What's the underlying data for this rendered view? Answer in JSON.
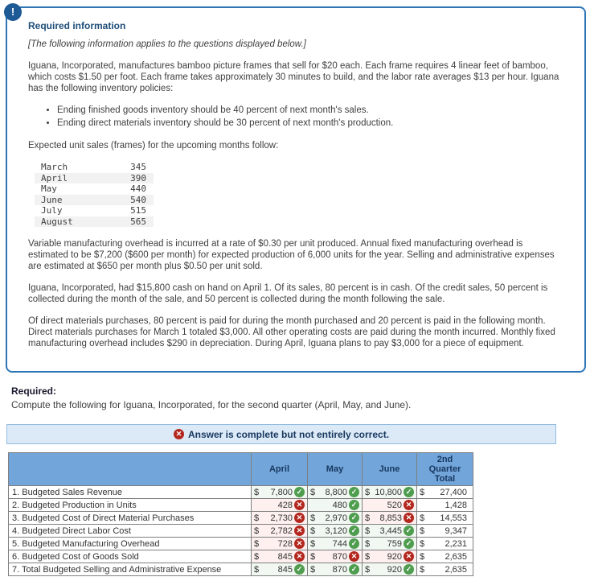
{
  "icons": {
    "alert": "!",
    "correct": "✓",
    "incorrect": "✕"
  },
  "colors": {
    "box_border": "#2e75b6",
    "heading_navy": "#1f4e79",
    "banner_bg": "#dceaf8",
    "header_blue": "#72a5da",
    "correct_green": "#4f9d4f",
    "incorrect_red": "#b3271e",
    "correct_cell_bg": "#f1f8f1",
    "incorrect_cell_bg": "#fdf0ef"
  },
  "info_box": {
    "heading": "Required information",
    "subheading": "[The following information applies to the questions displayed below.]",
    "paragraph1": "Iguana, Incorporated, manufactures bamboo picture frames that sell for $20 each. Each frame requires 4 linear feet of bamboo, which costs $1.50 per foot. Each frame takes approximately 30 minutes to build, and the labor rate averages $13 per hour. Iguana has the following inventory policies:",
    "bullets": [
      "Ending finished goods inventory should be 40 percent of next month's sales.",
      "Ending direct materials inventory should be 30 percent of next month's production."
    ],
    "sales_intro": "Expected unit sales (frames) for the upcoming months follow:",
    "unit_sales": [
      {
        "month": "March",
        "units": "345"
      },
      {
        "month": "April",
        "units": "390"
      },
      {
        "month": "May",
        "units": "440"
      },
      {
        "month": "June",
        "units": "540"
      },
      {
        "month": "July",
        "units": "515"
      },
      {
        "month": "August",
        "units": "565"
      }
    ],
    "paragraph2": "Variable manufacturing overhead is incurred at a rate of $0.30 per unit produced. Annual fixed manufacturing overhead is estimated to be $7,200 ($600 per month) for expected production of 6,000 units for the year. Selling and administrative expenses are estimated at $650 per month plus $0.50 per unit sold.",
    "paragraph3": "Iguana, Incorporated, had $15,800 cash on hand on April 1. Of its sales, 80 percent is in cash. Of the credit sales, 50 percent is collected during the month of the sale, and 50 percent is collected during the month following the sale.",
    "paragraph4": "Of direct materials purchases, 80 percent is paid for during the month purchased and 20 percent is paid in the following month. Direct materials purchases for March 1 totaled $3,000. All other operating costs are paid during the month incurred. Monthly fixed manufacturing overhead includes $290 in depreciation. During April, Iguana plans to pay $3,000 for a piece of equipment."
  },
  "required": {
    "label": "Required:",
    "instruction": "Compute the following for Iguana, Incorporated, for the second quarter (April, May, and June)."
  },
  "status_banner": {
    "text": "Answer is complete but not entirely correct."
  },
  "results_table": {
    "columns": [
      "",
      "April",
      "May",
      "June",
      "2nd\nQuarter\nTotal"
    ],
    "rows": [
      {
        "label": "1. Budgeted Sales Revenue",
        "cells": [
          {
            "currency": "$",
            "value": "7,800",
            "status": "correct"
          },
          {
            "currency": "$",
            "value": "8,800",
            "status": "correct"
          },
          {
            "currency": "$",
            "value": "10,800",
            "status": "correct"
          }
        ],
        "total": {
          "currency": "$",
          "value": "27,400"
        }
      },
      {
        "label": "2. Budgeted Production in Units",
        "cells": [
          {
            "currency": "",
            "value": "428",
            "status": "incorrect"
          },
          {
            "currency": "",
            "value": "480",
            "status": "correct"
          },
          {
            "currency": "",
            "value": "520",
            "status": "incorrect"
          }
        ],
        "total": {
          "currency": "",
          "value": "1,428"
        }
      },
      {
        "label": "3. Budgeted Cost of Direct Material Purchases",
        "cells": [
          {
            "currency": "$",
            "value": "2,730",
            "status": "incorrect"
          },
          {
            "currency": "$",
            "value": "2,970",
            "status": "correct"
          },
          {
            "currency": "$",
            "value": "8,853",
            "status": "incorrect"
          }
        ],
        "total": {
          "currency": "$",
          "value": "14,553"
        }
      },
      {
        "label": "4. Budgeted Direct Labor Cost",
        "cells": [
          {
            "currency": "$",
            "value": "2,782",
            "status": "incorrect"
          },
          {
            "currency": "$",
            "value": "3,120",
            "status": "correct"
          },
          {
            "currency": "$",
            "value": "3,445",
            "status": "correct"
          }
        ],
        "total": {
          "currency": "$",
          "value": "9,347"
        }
      },
      {
        "label": "5. Budgeted Manufacturing Overhead",
        "cells": [
          {
            "currency": "$",
            "value": "728",
            "status": "incorrect"
          },
          {
            "currency": "$",
            "value": "744",
            "status": "correct"
          },
          {
            "currency": "$",
            "value": "759",
            "status": "correct"
          }
        ],
        "total": {
          "currency": "$",
          "value": "2,231"
        }
      },
      {
        "label": "6. Budgeted Cost of Goods Sold",
        "cells": [
          {
            "currency": "$",
            "value": "845",
            "status": "incorrect"
          },
          {
            "currency": "$",
            "value": "870",
            "status": "incorrect"
          },
          {
            "currency": "$",
            "value": "920",
            "status": "incorrect"
          }
        ],
        "total": {
          "currency": "$",
          "value": "2,635"
        }
      },
      {
        "label": "7. Total Budgeted Selling and Administrative Expense",
        "cells": [
          {
            "currency": "$",
            "value": "845",
            "status": "correct"
          },
          {
            "currency": "$",
            "value": "870",
            "status": "correct"
          },
          {
            "currency": "$",
            "value": "920",
            "status": "correct"
          }
        ],
        "total": {
          "currency": "$",
          "value": "2,635"
        }
      }
    ]
  }
}
